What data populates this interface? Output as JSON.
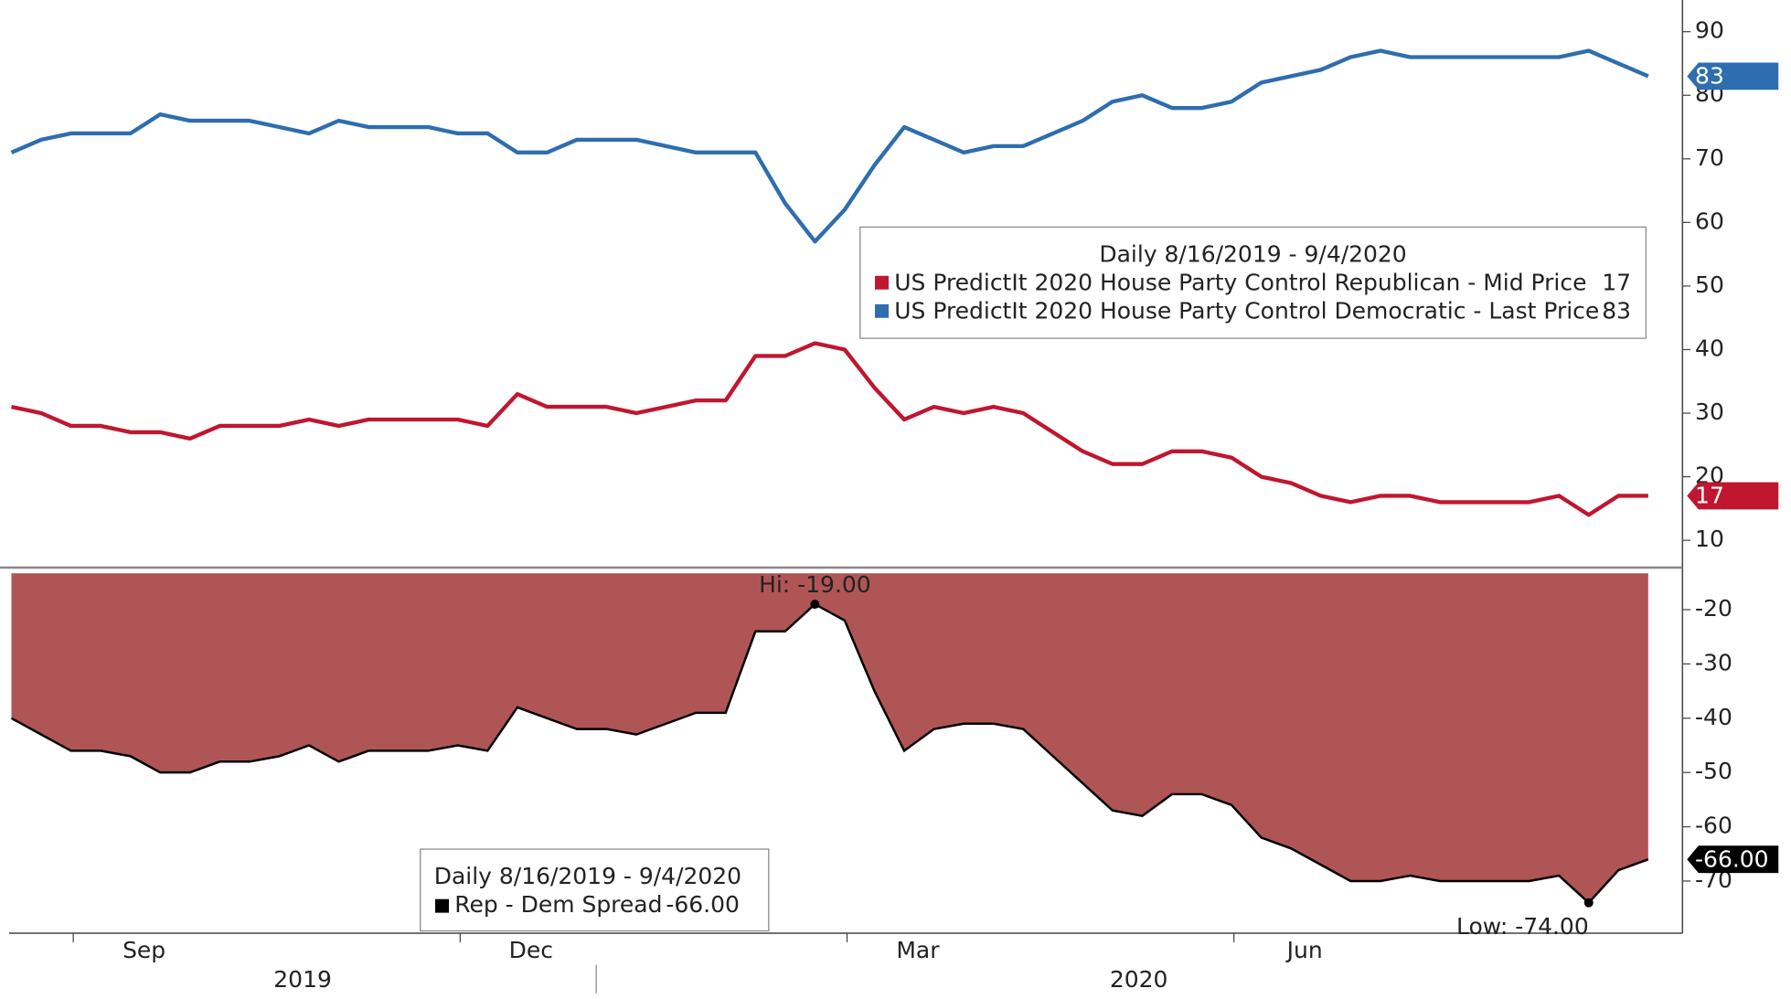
{
  "chart_data": [
    {
      "type": "line",
      "legend_title": "Daily 8/16/2019 - 9/4/2020",
      "ylim": [
        6.6,
        93.2
      ],
      "yticks": [
        10,
        20,
        30,
        40,
        50,
        60,
        70,
        80,
        90
      ],
      "series": [
        {
          "name": "US PredictIt 2020 House Party Control Republican - Mid Price",
          "color": "#c0162f",
          "values": [
            31,
            30,
            28,
            28,
            27,
            27,
            26,
            28,
            28,
            28,
            29,
            28,
            29,
            29,
            29,
            29,
            28,
            33,
            31,
            31,
            31,
            30,
            31,
            32,
            32,
            39,
            39,
            41,
            40,
            34,
            29,
            31,
            30,
            31,
            30,
            27,
            24,
            22,
            22,
            24,
            24,
            23,
            20,
            19,
            17,
            16,
            17,
            17,
            16,
            16,
            16,
            16,
            17,
            14,
            17,
            17
          ]
        },
        {
          "name": "US PredictIt 2020 House Party Control Democratic - Last Price",
          "color": "#2e6db0",
          "values": [
            71,
            73,
            74,
            74,
            74,
            77,
            76,
            76,
            76,
            75,
            74,
            76,
            75,
            75,
            75,
            74,
            74,
            71,
            71,
            73,
            73,
            73,
            72,
            71,
            71,
            71,
            63,
            57,
            62,
            69,
            75,
            73,
            71,
            72,
            72,
            74,
            76,
            79,
            80,
            78,
            78,
            79,
            82,
            83,
            84,
            86,
            87,
            86,
            86,
            86,
            86,
            86,
            86,
            87,
            85,
            83
          ]
        }
      ]
    },
    {
      "type": "area",
      "legend_title": "Daily 8/16/2019 - 9/4/2020",
      "ylim": [
        -79.6,
        -13.3
      ],
      "yticks": [
        -20,
        -30,
        -40,
        -50,
        -60,
        -70
      ],
      "categories": [
        null,
        null,
        null,
        "Sep",
        null,
        null,
        null,
        null,
        null,
        null,
        null,
        null,
        null,
        null,
        null,
        null,
        "Dec",
        null,
        null,
        null,
        null,
        null,
        null,
        null,
        null,
        null,
        null,
        null,
        null,
        "Mar",
        null,
        null,
        null,
        null,
        null,
        null,
        null,
        null,
        null,
        null,
        null,
        null,
        "Jun",
        null,
        null,
        null,
        null,
        null,
        null,
        null,
        null,
        null,
        null,
        null,
        null,
        null
      ],
      "x_groups": [
        "2019",
        "2020"
      ],
      "series": [
        {
          "name": "Rep - Dem Spread",
          "color": "#000000",
          "fill": "#b05555",
          "values": [
            -40,
            -43,
            -46,
            -46,
            -47,
            -50,
            -50,
            -48,
            -48,
            -47,
            -45,
            -48,
            -46,
            -46,
            -46,
            -45,
            -46,
            -38,
            -40,
            -42,
            -42,
            -43,
            -41,
            -39,
            -39,
            -24,
            -24,
            -19,
            -22,
            -35,
            -46,
            -42,
            -41,
            -41,
            -42,
            -47,
            -52,
            -57,
            -58,
            -54,
            -54,
            -56,
            -62,
            -64,
            -67,
            -70,
            -70,
            -69,
            -70,
            -70,
            -70,
            -70,
            -69,
            -74,
            -68,
            -66
          ],
          "last_label": "-66.00"
        }
      ],
      "annotations": [
        {
          "label": "Hi: -19.00",
          "value": -19
        },
        {
          "label": "Low: -74.00",
          "value": -74
        }
      ]
    }
  ]
}
